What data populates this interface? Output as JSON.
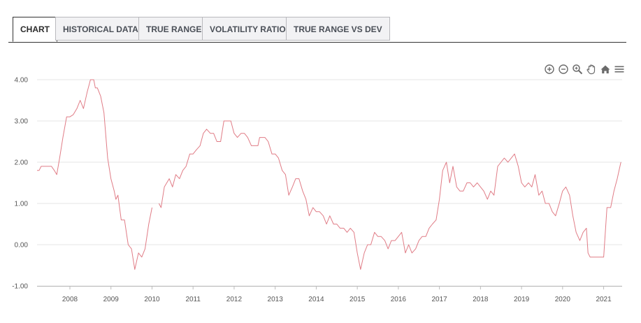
{
  "tabs": [
    {
      "label": "CHART",
      "active": true
    },
    {
      "label": "HISTORICAL DATA",
      "active": false
    },
    {
      "label": "TRUE RANGE",
      "active": false
    },
    {
      "label": "VOLATILITY RATIO",
      "active": false
    },
    {
      "label": "TRUE RANGE VS DEV",
      "active": false
    }
  ],
  "toolbar": {
    "icons": [
      "zoom-in-icon",
      "zoom-out-icon",
      "magnifier-icon",
      "pan-hand-icon",
      "home-icon",
      "menu-icon"
    ]
  },
  "colors": {
    "series": "#e07c86",
    "grid": "#e6e6e6",
    "axis": "#bbbbbb",
    "tab_border": "#333333"
  },
  "chart_data": {
    "type": "line",
    "title": "",
    "xlabel": "",
    "ylabel": "",
    "ylim": [
      -1.0,
      4.0
    ],
    "xlim": [
      2007.2,
      2021.45
    ],
    "y_ticks": [
      "4.00",
      "3.00",
      "2.00",
      "1.00",
      "0.00",
      "-1.00"
    ],
    "x_ticks": [
      "2008",
      "2009",
      "2010",
      "2011",
      "2012",
      "2013",
      "2014",
      "2015",
      "2016",
      "2017",
      "2018",
      "2019",
      "2020",
      "2021"
    ],
    "grid": true,
    "legend": "none",
    "series": [
      {
        "color": "#e07c86",
        "segments": [
          [
            [
              2007.2,
              1.8
            ],
            [
              2007.25,
              1.8
            ],
            [
              2007.3,
              1.9
            ],
            [
              2007.45,
              1.9
            ],
            [
              2007.55,
              1.9
            ],
            [
              2007.62,
              1.8
            ],
            [
              2007.68,
              1.7
            ],
            [
              2007.75,
              2.1
            ],
            [
              2007.83,
              2.6
            ],
            [
              2007.92,
              3.1
            ],
            [
              2008.0,
              3.1
            ],
            [
              2008.08,
              3.15
            ],
            [
              2008.17,
              3.3
            ],
            [
              2008.25,
              3.5
            ],
            [
              2008.33,
              3.3
            ],
            [
              2008.42,
              3.7
            ],
            [
              2008.5,
              4.0
            ],
            [
              2008.58,
              4.0
            ],
            [
              2008.62,
              3.8
            ],
            [
              2008.67,
              3.8
            ],
            [
              2008.75,
              3.6
            ],
            [
              2008.83,
              3.2
            ],
            [
              2008.92,
              2.1
            ],
            [
              2009.0,
              1.6
            ],
            [
              2009.08,
              1.3
            ],
            [
              2009.12,
              1.1
            ],
            [
              2009.17,
              1.2
            ],
            [
              2009.25,
              0.6
            ],
            [
              2009.33,
              0.6
            ],
            [
              2009.42,
              0.0
            ],
            [
              2009.5,
              -0.1
            ],
            [
              2009.58,
              -0.6
            ],
            [
              2009.67,
              -0.2
            ],
            [
              2009.75,
              -0.3
            ],
            [
              2009.83,
              -0.1
            ],
            [
              2009.92,
              0.5
            ],
            [
              2010.0,
              0.9
            ]
          ],
          [
            [
              2010.17,
              1.0
            ],
            [
              2010.22,
              0.9
            ],
            [
              2010.3,
              1.4
            ],
            [
              2010.42,
              1.6
            ],
            [
              2010.5,
              1.4
            ],
            [
              2010.58,
              1.7
            ],
            [
              2010.67,
              1.6
            ],
            [
              2010.75,
              1.8
            ],
            [
              2010.83,
              1.9
            ],
            [
              2010.92,
              2.2
            ],
            [
              2011.0,
              2.2
            ],
            [
              2011.08,
              2.3
            ],
            [
              2011.17,
              2.4
            ],
            [
              2011.25,
              2.7
            ],
            [
              2011.33,
              2.8
            ],
            [
              2011.42,
              2.7
            ],
            [
              2011.5,
              2.7
            ],
            [
              2011.58,
              2.5
            ],
            [
              2011.67,
              2.5
            ],
            [
              2011.75,
              3.0
            ],
            [
              2011.83,
              3.0
            ],
            [
              2011.92,
              3.0
            ],
            [
              2012.0,
              2.7
            ],
            [
              2012.08,
              2.6
            ],
            [
              2012.17,
              2.7
            ],
            [
              2012.25,
              2.7
            ],
            [
              2012.33,
              2.6
            ],
            [
              2012.42,
              2.4
            ],
            [
              2012.5,
              2.4
            ],
            [
              2012.58,
              2.4
            ],
            [
              2012.62,
              2.6
            ],
            [
              2012.75,
              2.6
            ],
            [
              2012.83,
              2.5
            ],
            [
              2012.92,
              2.2
            ],
            [
              2013.0,
              2.2
            ],
            [
              2013.08,
              2.1
            ],
            [
              2013.17,
              1.8
            ],
            [
              2013.25,
              1.7
            ],
            [
              2013.33,
              1.2
            ],
            [
              2013.42,
              1.4
            ],
            [
              2013.5,
              1.6
            ],
            [
              2013.58,
              1.6
            ],
            [
              2013.67,
              1.3
            ],
            [
              2013.75,
              1.1
            ],
            [
              2013.83,
              0.7
            ],
            [
              2013.92,
              0.9
            ],
            [
              2014.0,
              0.8
            ],
            [
              2014.08,
              0.8
            ],
            [
              2014.17,
              0.7
            ],
            [
              2014.25,
              0.5
            ],
            [
              2014.33,
              0.7
            ],
            [
              2014.42,
              0.5
            ],
            [
              2014.5,
              0.5
            ],
            [
              2014.58,
              0.4
            ],
            [
              2014.67,
              0.4
            ],
            [
              2014.75,
              0.3
            ],
            [
              2014.83,
              0.4
            ],
            [
              2014.92,
              0.3
            ],
            [
              2015.0,
              -0.2
            ],
            [
              2015.08,
              -0.6
            ],
            [
              2015.17,
              -0.2
            ],
            [
              2015.25,
              0.0
            ],
            [
              2015.33,
              0.0
            ],
            [
              2015.42,
              0.3
            ],
            [
              2015.5,
              0.2
            ],
            [
              2015.58,
              0.2
            ],
            [
              2015.67,
              0.1
            ],
            [
              2015.75,
              -0.1
            ],
            [
              2015.83,
              0.1
            ],
            [
              2015.92,
              0.1
            ],
            [
              2016.0,
              0.2
            ],
            [
              2016.08,
              0.3
            ],
            [
              2016.17,
              -0.2
            ],
            [
              2016.25,
              0.0
            ],
            [
              2016.33,
              -0.2
            ],
            [
              2016.42,
              -0.1
            ],
            [
              2016.5,
              0.1
            ],
            [
              2016.58,
              0.2
            ],
            [
              2016.67,
              0.2
            ],
            [
              2016.75,
              0.4
            ],
            [
              2016.83,
              0.5
            ],
            [
              2016.92,
              0.6
            ],
            [
              2017.0,
              1.1
            ],
            [
              2017.08,
              1.8
            ],
            [
              2017.17,
              2.0
            ],
            [
              2017.25,
              1.5
            ],
            [
              2017.33,
              1.9
            ],
            [
              2017.42,
              1.4
            ],
            [
              2017.5,
              1.3
            ],
            [
              2017.58,
              1.3
            ],
            [
              2017.67,
              1.5
            ],
            [
              2017.75,
              1.5
            ],
            [
              2017.83,
              1.4
            ],
            [
              2017.92,
              1.5
            ],
            [
              2018.0,
              1.4
            ],
            [
              2018.08,
              1.3
            ],
            [
              2018.17,
              1.1
            ],
            [
              2018.25,
              1.3
            ],
            [
              2018.33,
              1.2
            ],
            [
              2018.42,
              1.9
            ],
            [
              2018.5,
              2.0
            ],
            [
              2018.58,
              2.1
            ],
            [
              2018.67,
              2.0
            ],
            [
              2018.75,
              2.1
            ],
            [
              2018.83,
              2.2
            ],
            [
              2018.92,
              1.9
            ],
            [
              2019.0,
              1.5
            ],
            [
              2019.08,
              1.4
            ],
            [
              2019.17,
              1.5
            ],
            [
              2019.25,
              1.4
            ],
            [
              2019.33,
              1.7
            ],
            [
              2019.42,
              1.2
            ],
            [
              2019.5,
              1.3
            ],
            [
              2019.58,
              1.0
            ],
            [
              2019.67,
              1.0
            ],
            [
              2019.75,
              0.8
            ],
            [
              2019.83,
              0.7
            ],
            [
              2019.92,
              1.0
            ],
            [
              2020.0,
              1.3
            ],
            [
              2020.08,
              1.4
            ],
            [
              2020.17,
              1.2
            ],
            [
              2020.25,
              0.7
            ],
            [
              2020.33,
              0.3
            ],
            [
              2020.42,
              0.1
            ],
            [
              2020.5,
              0.3
            ],
            [
              2020.58,
              0.4
            ],
            [
              2020.62,
              -0.2
            ],
            [
              2020.67,
              -0.3
            ],
            [
              2020.75,
              -0.3
            ],
            [
              2020.83,
              -0.3
            ],
            [
              2020.92,
              -0.3
            ],
            [
              2021.0,
              -0.3
            ],
            [
              2021.08,
              0.9
            ],
            [
              2021.17,
              0.9
            ],
            [
              2021.25,
              1.3
            ],
            [
              2021.33,
              1.6
            ],
            [
              2021.42,
              2.0
            ]
          ]
        ]
      }
    ]
  }
}
